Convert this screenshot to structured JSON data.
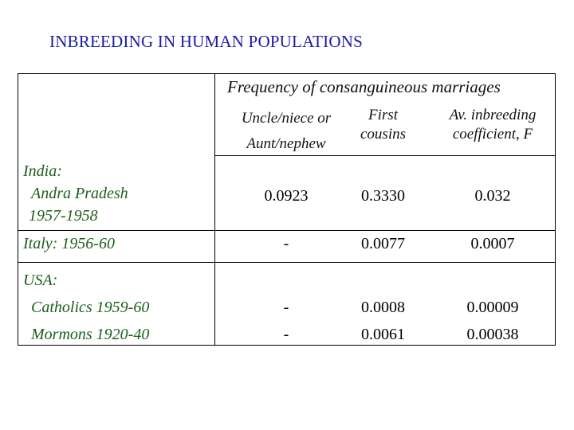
{
  "title": "INBREEDING IN HUMAN POPULATIONS",
  "table": {
    "group_header": "Frequency of consanguineous marriages",
    "columns": [
      {
        "line1": "Uncle/niece or",
        "line2": "Aunt/nephew"
      },
      {
        "line1": "First",
        "line2": "cousins"
      },
      {
        "line1": "Av. inbreeding",
        "line2": "coefficient, F"
      }
    ],
    "rows": [
      {
        "label_lines": [
          "India:",
          " Andra Pradesh",
          " 1957-1958"
        ],
        "values": [
          "0.0923",
          "0.3330",
          "0.032"
        ]
      },
      {
        "label_lines": [
          "Italy: 1956-60"
        ],
        "values": [
          "-",
          "0.0077",
          "0.0007"
        ]
      },
      {
        "label_lines": [
          "USA:",
          "Catholics 1959-60",
          "Mormons 1920-40"
        ],
        "values": [
          [
            "-",
            "-"
          ],
          [
            "0.0008",
            "0.0061"
          ],
          [
            "0.00009",
            "0.00038"
          ]
        ]
      }
    ]
  },
  "colors": {
    "title": "#1a1aa6",
    "row_labels": "#1b5e1b"
  }
}
